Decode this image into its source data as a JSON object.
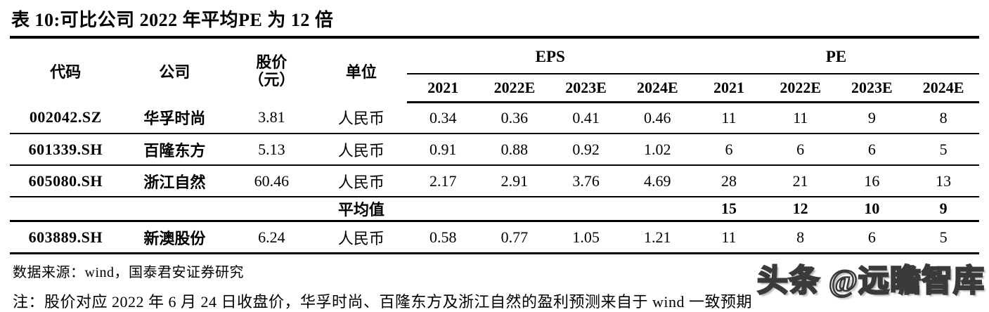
{
  "title": "表 10:可比公司 2022 年平均PE 为 12 倍",
  "table": {
    "headers": {
      "code": "代码",
      "company": "公司",
      "price_line1": "股价",
      "price_line2": "（元）",
      "unit": "单位",
      "eps_group": "EPS",
      "pe_group": "PE",
      "years": [
        "2021",
        "2022E",
        "2023E",
        "2024E"
      ]
    },
    "rows": [
      {
        "code": "002042.SZ",
        "company": "华孚时尚",
        "price": "3.81",
        "unit": "人民币",
        "eps": [
          "0.34",
          "0.36",
          "0.41",
          "0.46"
        ],
        "pe": [
          "11",
          "11",
          "9",
          "8"
        ]
      },
      {
        "code": "601339.SH",
        "company": "百隆东方",
        "price": "5.13",
        "unit": "人民币",
        "eps": [
          "0.91",
          "0.88",
          "0.92",
          "1.02"
        ],
        "pe": [
          "6",
          "6",
          "6",
          "5"
        ]
      },
      {
        "code": "605080.SH",
        "company": "浙江自然",
        "price": "60.46",
        "unit": "人民币",
        "eps": [
          "2.17",
          "2.91",
          "3.76",
          "4.69"
        ],
        "pe": [
          "28",
          "21",
          "16",
          "13"
        ]
      }
    ],
    "average_row": {
      "label": "平均值",
      "pe": [
        "15",
        "12",
        "10",
        "9"
      ]
    },
    "last_row": {
      "code": "603889.SH",
      "company": "新澳股份",
      "price": "6.24",
      "unit": "人民币",
      "eps": [
        "0.58",
        "0.77",
        "1.05",
        "1.21"
      ],
      "pe": [
        "11",
        "8",
        "6",
        "5"
      ]
    }
  },
  "source": "数据来源：wind，国泰君安证券研究",
  "note": "注：股价对应 2022 年 6 月 24 日收盘价，华孚时尚、百隆东方及浙江自然的盈利预测来自于 wind 一致预期",
  "watermark": "头条 @远瞻智库"
}
